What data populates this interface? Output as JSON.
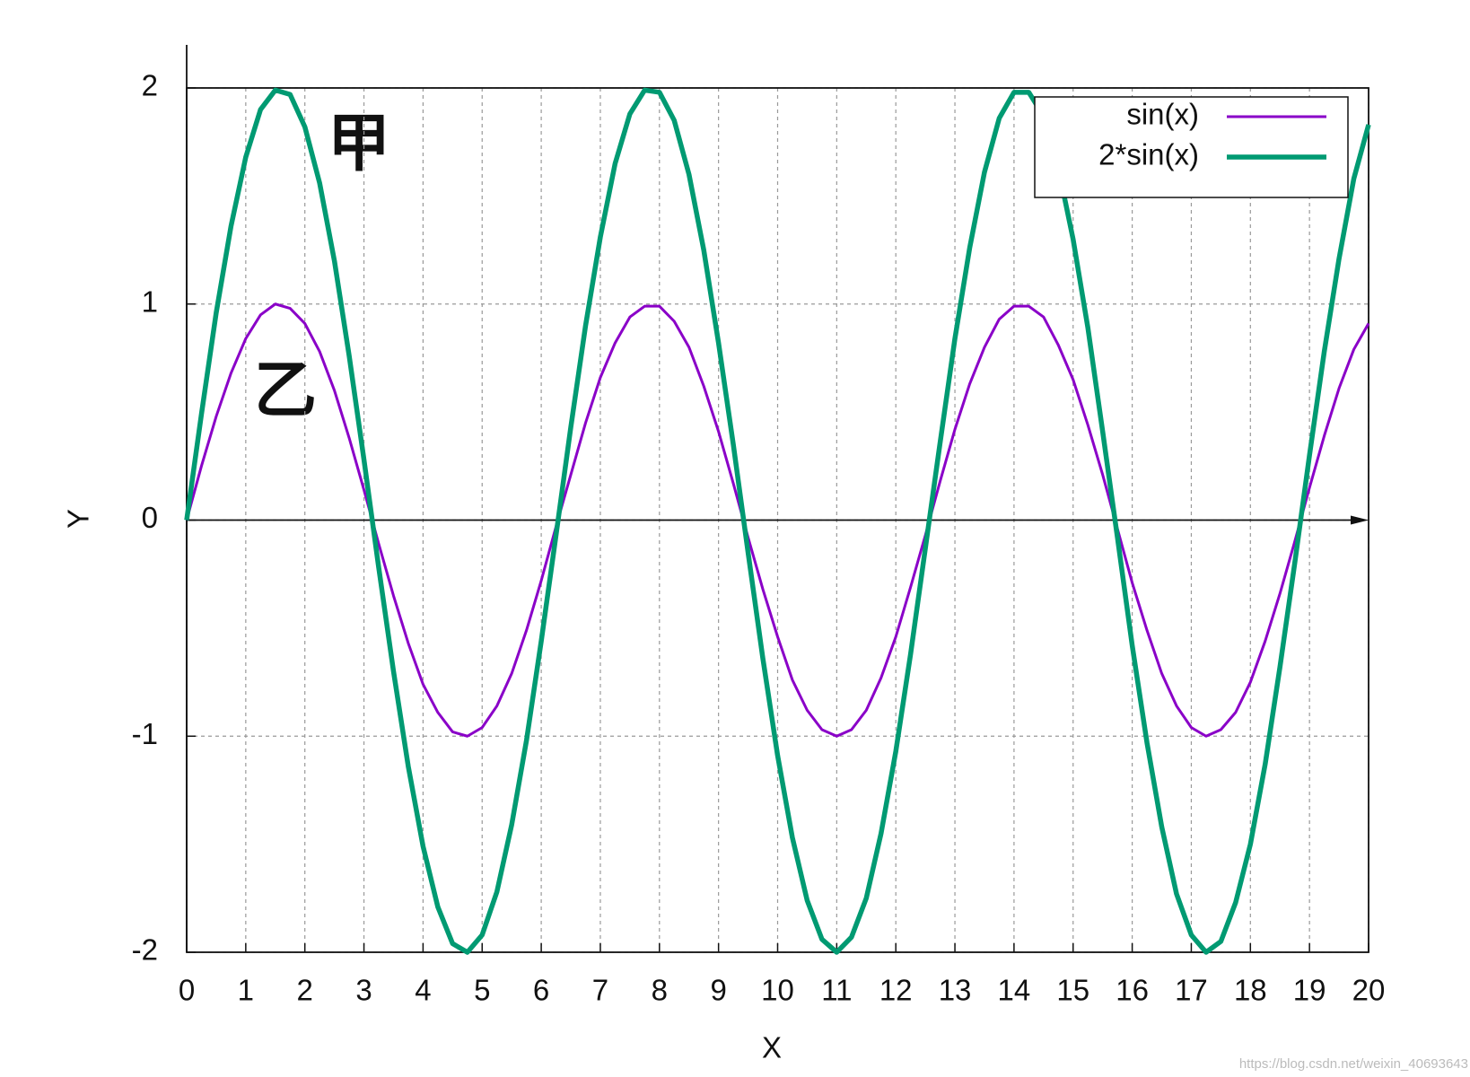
{
  "chart_data": {
    "type": "line",
    "x": [
      0,
      0.25,
      0.5,
      0.75,
      1,
      1.25,
      1.5,
      1.75,
      2,
      2.25,
      2.5,
      2.75,
      3,
      3.25,
      3.5,
      3.75,
      4,
      4.25,
      4.5,
      4.75,
      5,
      5.25,
      5.5,
      5.75,
      6,
      6.25,
      6.5,
      6.75,
      7,
      7.25,
      7.5,
      7.75,
      8,
      8.25,
      8.5,
      8.75,
      9,
      9.25,
      9.5,
      9.75,
      10,
      10.25,
      10.5,
      10.75,
      11,
      11.25,
      11.5,
      11.75,
      12,
      12.25,
      12.5,
      12.75,
      13,
      13.25,
      13.5,
      13.75,
      14,
      14.25,
      14.5,
      14.75,
      15,
      15.25,
      15.5,
      15.75,
      16,
      16.25,
      16.5,
      16.75,
      17,
      17.25,
      17.5,
      17.75,
      18,
      18.25,
      18.5,
      18.75,
      19,
      19.25,
      19.5,
      19.75,
      20
    ],
    "series": [
      {
        "name": "sin(x)",
        "color": "#8a00c8",
        "values": [
          0,
          0.25,
          0.48,
          0.68,
          0.84,
          0.95,
          1.0,
          0.98,
          0.91,
          0.78,
          0.6,
          0.38,
          0.14,
          -0.11,
          -0.35,
          -0.57,
          -0.76,
          -0.89,
          -0.98,
          -1.0,
          -0.96,
          -0.86,
          -0.71,
          -0.51,
          -0.28,
          -0.03,
          0.21,
          0.45,
          0.66,
          0.82,
          0.94,
          0.99,
          0.99,
          0.92,
          0.8,
          0.62,
          0.41,
          0.17,
          -0.08,
          -0.32,
          -0.54,
          -0.74,
          -0.88,
          -0.97,
          -1.0,
          -0.97,
          -0.88,
          -0.73,
          -0.54,
          -0.31,
          -0.07,
          0.18,
          0.42,
          0.63,
          0.8,
          0.93,
          0.99,
          0.99,
          0.94,
          0.81,
          0.65,
          0.44,
          0.21,
          -0.04,
          -0.29,
          -0.51,
          -0.71,
          -0.86,
          -0.96,
          -1.0,
          -0.97,
          -0.89,
          -0.75,
          -0.56,
          -0.34,
          -0.1,
          0.15,
          0.39,
          0.61,
          0.79,
          0.91
        ]
      },
      {
        "name": "2*sin(x)",
        "color": "#009a72",
        "values": [
          0,
          0.49,
          0.96,
          1.36,
          1.68,
          1.9,
          1.99,
          1.97,
          1.82,
          1.56,
          1.2,
          0.76,
          0.28,
          -0.22,
          -0.7,
          -1.14,
          -1.51,
          -1.79,
          -1.96,
          -2.0,
          -1.92,
          -1.72,
          -1.41,
          -1.02,
          -0.56,
          -0.07,
          0.43,
          0.9,
          1.31,
          1.65,
          1.88,
          1.99,
          1.98,
          1.85,
          1.6,
          1.25,
          0.82,
          0.35,
          -0.15,
          -0.64,
          -1.09,
          -1.47,
          -1.76,
          -1.94,
          -2.0,
          -1.93,
          -1.75,
          -1.45,
          -1.07,
          -0.62,
          -0.13,
          0.36,
          0.84,
          1.26,
          1.61,
          1.86,
          1.98,
          1.98,
          1.87,
          1.63,
          1.3,
          0.89,
          0.41,
          -0.08,
          -0.58,
          -1.03,
          -1.42,
          -1.73,
          -1.92,
          -2.0,
          -1.95,
          -1.77,
          -1.5,
          -1.13,
          -0.68,
          -0.2,
          0.3,
          0.78,
          1.21,
          1.58,
          1.83
        ]
      }
    ],
    "xlabel": "X",
    "ylabel": "Y",
    "xlim": [
      0,
      20
    ],
    "xticks": [
      0,
      1,
      2,
      3,
      4,
      5,
      6,
      7,
      8,
      9,
      10,
      11,
      12,
      13,
      14,
      15,
      16,
      17,
      18,
      19,
      20
    ],
    "ylim": [
      -2,
      2
    ],
    "yticks": [
      -2,
      -1,
      0,
      1,
      2
    ],
    "grid": true,
    "legend": "top-right",
    "annotations": [
      "甲",
      "乙"
    ],
    "watermark": "https://blog.csdn.net/weixin_40693643"
  }
}
